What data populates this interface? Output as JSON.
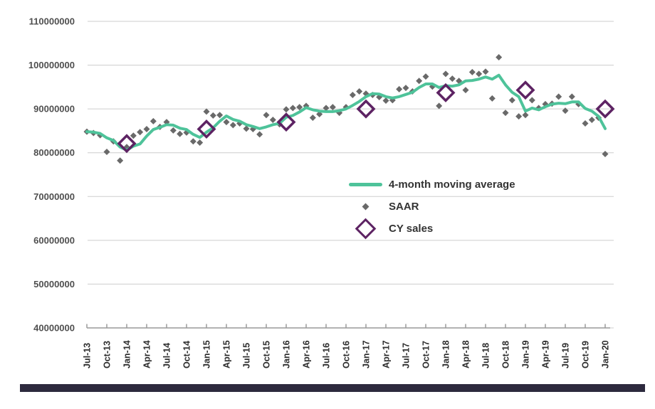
{
  "chart_data": {
    "type": "combo",
    "title": "",
    "y_axis": {
      "tick_labels": [
        "110000000",
        "100000000",
        "90000000",
        "80000000",
        "70000000",
        "60000000",
        "50000000",
        "40000000"
      ],
      "tick_values_millions": [
        110,
        100,
        90,
        80,
        70,
        60,
        50,
        40
      ],
      "min_millions": 40,
      "max_millions": 110,
      "gridlines": true
    },
    "x_axis": {
      "tick_labels": [
        "Jul-13",
        "Oct-13",
        "Jan-14",
        "Apr-14",
        "Jul-14",
        "Oct-14",
        "Jan-15",
        "Apr-15",
        "Jul-15",
        "Oct-15",
        "Jan-16",
        "Apr-16",
        "Jul-16",
        "Oct-16",
        "Jan-17",
        "Apr-17",
        "Jul-17",
        "Oct-17",
        "Jan-18",
        "Apr-18",
        "Jul-18",
        "Oct-18",
        "Jan-19",
        "Apr-19",
        "Jul-19",
        "Oct-19",
        "Jan-20"
      ],
      "start_month": "Jul-13",
      "end_month": "Jan-20",
      "frequency": "monthly",
      "months_per_tick": 3
    },
    "series": [
      {
        "name": "4-month moving average",
        "type": "line",
        "color": "#4ec39a",
        "values_millions": [
          84.8,
          84.7,
          84.4,
          83.4,
          82.8,
          81.3,
          80.6,
          81.5,
          82.0,
          83.8,
          85.3,
          85.8,
          86.4,
          86.3,
          85.6,
          85.3,
          84.2,
          83.5,
          84.7,
          85.7,
          87.2,
          88.4,
          87.6,
          87.2,
          86.4,
          86.0,
          85.5,
          85.9,
          86.4,
          86.7,
          88.1,
          88.5,
          89.3,
          90.3,
          89.8,
          89.5,
          89.4,
          89.4,
          89.6,
          90.0,
          90.8,
          91.7,
          92.8,
          93.5,
          93.4,
          92.8,
          92.5,
          92.8,
          93.3,
          93.8,
          94.9,
          95.7,
          95.7,
          94.9,
          95.3,
          95.2,
          95.5,
          96.4,
          96.5,
          96.8,
          97.3,
          96.8,
          97.7,
          95.5,
          93.8,
          92.8,
          89.5,
          90.2,
          89.8,
          90.5,
          91.1,
          91.3,
          91.2,
          91.6,
          91.6,
          90.1,
          89.5,
          88.3,
          85.5
        ]
      },
      {
        "name": "SAAR",
        "type": "scatter",
        "marker": "diamond",
        "color": "#696969",
        "values_millions": [
          84.8,
          84.5,
          84.0,
          80.2,
          82.6,
          78.2,
          81.3,
          83.9,
          84.7,
          85.4,
          87.2,
          85.9,
          87.0,
          85.1,
          84.3,
          84.6,
          82.6,
          82.3,
          89.4,
          88.5,
          88.6,
          87.0,
          86.3,
          86.7,
          85.5,
          85.4,
          84.2,
          88.6,
          87.5,
          86.5,
          89.9,
          90.2,
          90.4,
          90.7,
          88.0,
          88.8,
          90.2,
          90.4,
          89.1,
          90.4,
          93.2,
          94.0,
          93.5,
          93.2,
          92.7,
          91.9,
          92.0,
          94.5,
          94.8,
          94.0,
          96.4,
          97.4,
          95.1,
          90.7,
          98.0,
          96.9,
          96.4,
          94.3,
          98.4,
          98.0,
          98.5,
          92.4,
          101.8,
          89.1,
          92.0,
          88.3,
          88.6,
          92.0,
          90.2,
          91.1,
          91.2,
          92.8,
          89.6,
          92.8,
          91.1,
          86.7,
          87.5,
          88.0,
          79.7
        ]
      },
      {
        "name": "CY sales",
        "type": "scatter",
        "marker": "diamond-outline",
        "color": "#5d2363",
        "points": [
          {
            "x": "Jan-14",
            "value_millions": 82.1
          },
          {
            "x": "Jan-15",
            "value_millions": 85.4
          },
          {
            "x": "Jan-16",
            "value_millions": 87.0
          },
          {
            "x": "Jan-17",
            "value_millions": 90.0
          },
          {
            "x": "Jan-18",
            "value_millions": 93.7
          },
          {
            "x": "Jan-19",
            "value_millions": 94.3
          },
          {
            "x": "Jan-20",
            "value_millions": 90.0
          }
        ]
      }
    ],
    "legend": {
      "position": "center-right-overlay",
      "items": [
        "4-month moving average",
        "SAAR",
        "CY sales"
      ]
    },
    "style": {
      "gridline_color": "#cdcdcd",
      "axis_color": "#9a9a9a",
      "y_label_color": "#4f4f4f",
      "x_label_color": "#2e2e2e",
      "legend_text_color": "#333333"
    }
  },
  "footer": {
    "bar_color": "#2d2a3e"
  }
}
